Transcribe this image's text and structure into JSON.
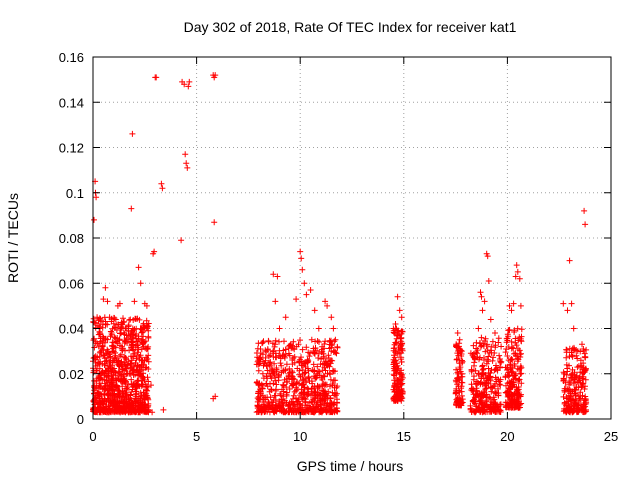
{
  "chart_data": {
    "type": "scatter",
    "title": "Day 302 of 2018, Rate Of TEC Index for receiver kat1",
    "xlabel": "GPS time / hours",
    "ylabel": "ROTI / TECUs",
    "xlim": [
      0,
      25
    ],
    "ylim": [
      0,
      0.16
    ],
    "xticks": [
      0,
      5,
      10,
      15,
      20,
      25
    ],
    "yticks": [
      0,
      0.02,
      0.04,
      0.06,
      0.08,
      0.1,
      0.12,
      0.14,
      0.16
    ],
    "xtick_labels": [
      "0",
      "5",
      "10",
      "15",
      "20",
      "25"
    ],
    "ytick_labels": [
      "0",
      "0.02",
      "0.04",
      "0.06",
      "0.08",
      "0.1",
      "0.12",
      "0.14",
      "0.16"
    ],
    "grid": true,
    "marker": "+",
    "color": "#ff0000",
    "series": [
      {
        "name": "ROTI",
        "points": [
          [
            0.05,
            0.088
          ],
          [
            0.1,
            0.105
          ],
          [
            0.12,
            0.1
          ],
          [
            0.15,
            0.098
          ],
          [
            0.2,
            0.045
          ],
          [
            0.3,
            0.04
          ],
          [
            0.5,
            0.053
          ],
          [
            0.6,
            0.058
          ],
          [
            0.7,
            0.052
          ],
          [
            0.8,
            0.045
          ],
          [
            0.9,
            0.038
          ],
          [
            1.0,
            0.032
          ],
          [
            1.1,
            0.044
          ],
          [
            1.2,
            0.05
          ],
          [
            1.3,
            0.051
          ],
          [
            1.4,
            0.042
          ],
          [
            1.5,
            0.043
          ],
          [
            1.6,
            0.04
          ],
          [
            1.7,
            0.035
          ],
          [
            1.8,
            0.044
          ],
          [
            1.9,
            0.126
          ],
          [
            1.85,
            0.093
          ],
          [
            2.0,
            0.052
          ],
          [
            2.2,
            0.067
          ],
          [
            2.3,
            0.06
          ],
          [
            2.4,
            0.033
          ],
          [
            2.5,
            0.051
          ],
          [
            2.6,
            0.05
          ],
          [
            2.8,
            0.015
          ],
          [
            2.9,
            0.073
          ],
          [
            2.95,
            0.074
          ],
          [
            3.0,
            0.151
          ],
          [
            3.05,
            0.151
          ],
          [
            3.3,
            0.104
          ],
          [
            3.35,
            0.102
          ],
          [
            3.4,
            0.004
          ],
          [
            2.85,
            0.003
          ],
          [
            4.25,
            0.079
          ],
          [
            4.3,
            0.149
          ],
          [
            4.4,
            0.148
          ],
          [
            4.45,
            0.117
          ],
          [
            4.5,
            0.113
          ],
          [
            4.55,
            0.111
          ],
          [
            4.6,
            0.147
          ],
          [
            4.65,
            0.149
          ],
          [
            5.8,
            0.152
          ],
          [
            5.85,
            0.151
          ],
          [
            5.9,
            0.152
          ],
          [
            5.85,
            0.087
          ],
          [
            5.9,
            0.01
          ],
          [
            5.8,
            0.009
          ],
          [
            8.0,
            0.015
          ],
          [
            8.1,
            0.012
          ],
          [
            8.2,
            0.02
          ],
          [
            8.5,
            0.02
          ],
          [
            8.7,
            0.064
          ],
          [
            8.8,
            0.052
          ],
          [
            8.9,
            0.063
          ],
          [
            9.0,
            0.04
          ],
          [
            9.3,
            0.045
          ],
          [
            9.5,
            0.028
          ],
          [
            9.8,
            0.053
          ],
          [
            10.0,
            0.074
          ],
          [
            10.05,
            0.071
          ],
          [
            10.1,
            0.066
          ],
          [
            10.2,
            0.06
          ],
          [
            10.3,
            0.055
          ],
          [
            10.5,
            0.057
          ],
          [
            10.7,
            0.048
          ],
          [
            10.9,
            0.04
          ],
          [
            11.2,
            0.052
          ],
          [
            11.3,
            0.05
          ],
          [
            11.5,
            0.045
          ],
          [
            11.6,
            0.04
          ],
          [
            11.7,
            0.035
          ],
          [
            14.5,
            0.04
          ],
          [
            14.7,
            0.054
          ],
          [
            14.8,
            0.048
          ],
          [
            14.9,
            0.045
          ],
          [
            14.6,
            0.042
          ],
          [
            17.6,
            0.038
          ],
          [
            17.7,
            0.035
          ],
          [
            17.8,
            0.03
          ],
          [
            18.4,
            0.025
          ],
          [
            18.6,
            0.04
          ],
          [
            18.7,
            0.056
          ],
          [
            18.75,
            0.054
          ],
          [
            18.8,
            0.048
          ],
          [
            18.9,
            0.052
          ],
          [
            19.0,
            0.073
          ],
          [
            19.05,
            0.072
          ],
          [
            19.1,
            0.061
          ],
          [
            19.2,
            0.044
          ],
          [
            19.4,
            0.038
          ],
          [
            19.6,
            0.028
          ],
          [
            20.1,
            0.05
          ],
          [
            20.2,
            0.048
          ],
          [
            20.3,
            0.051
          ],
          [
            20.4,
            0.063
          ],
          [
            20.45,
            0.068
          ],
          [
            20.5,
            0.065
          ],
          [
            20.6,
            0.062
          ],
          [
            20.65,
            0.05
          ],
          [
            22.7,
            0.051
          ],
          [
            22.9,
            0.048
          ],
          [
            23.0,
            0.07
          ],
          [
            23.1,
            0.051
          ],
          [
            23.2,
            0.04
          ],
          [
            23.4,
            0.03
          ],
          [
            23.6,
            0.033
          ],
          [
            23.7,
            0.092
          ],
          [
            23.75,
            0.086
          ]
        ]
      }
    ],
    "dense_clusters": [
      {
        "x": [
          0.0,
          2.7
        ],
        "y": [
          0.003,
          0.045
        ],
        "n": 900
      },
      {
        "x": [
          7.9,
          11.8
        ],
        "y": [
          0.003,
          0.035
        ],
        "n": 700
      },
      {
        "x": [
          14.5,
          14.95
        ],
        "y": [
          0.008,
          0.04
        ],
        "n": 160
      },
      {
        "x": [
          17.5,
          17.85
        ],
        "y": [
          0.006,
          0.034
        ],
        "n": 90
      },
      {
        "x": [
          18.2,
          19.7
        ],
        "y": [
          0.003,
          0.036
        ],
        "n": 280
      },
      {
        "x": [
          19.9,
          20.7
        ],
        "y": [
          0.005,
          0.04
        ],
        "n": 200
      },
      {
        "x": [
          22.7,
          23.8
        ],
        "y": [
          0.003,
          0.032
        ],
        "n": 220
      }
    ]
  }
}
